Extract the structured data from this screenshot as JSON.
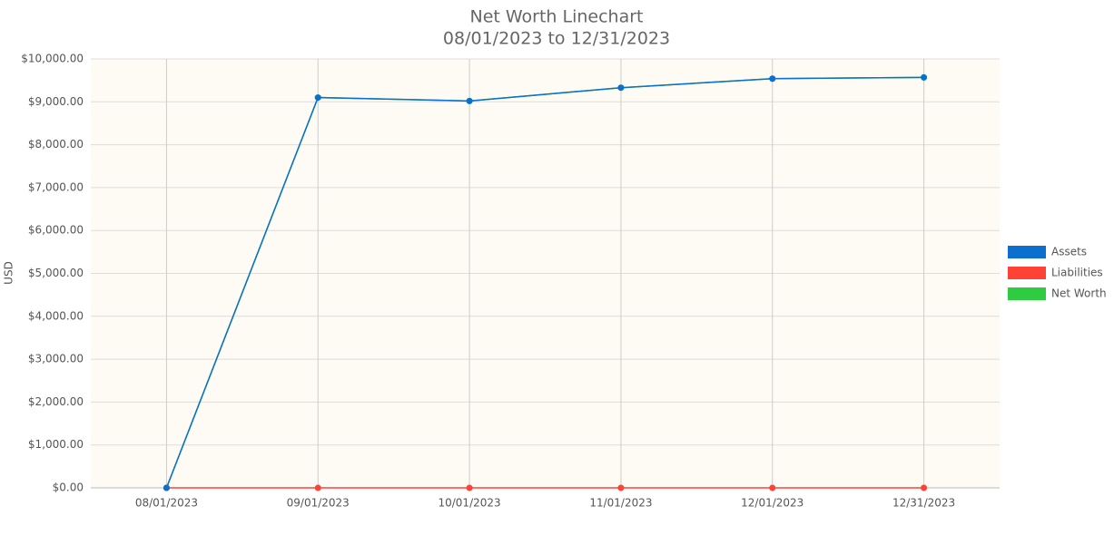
{
  "chart_data": {
    "type": "line",
    "title": "Net Worth Linechart",
    "subtitle": "08/01/2023 to 12/31/2023",
    "y_label": "USD",
    "categories": [
      "08/01/2023",
      "09/01/2023",
      "10/01/2023",
      "11/01/2023",
      "12/01/2023",
      "12/31/2023"
    ],
    "series": [
      {
        "name": "Assets",
        "color": "#0b6fcf",
        "values": [
          0,
          9100,
          9020,
          9330,
          9540,
          9570
        ]
      },
      {
        "name": "Liabilities",
        "color": "#ff4136",
        "values": [
          0,
          0,
          0,
          0,
          0,
          0
        ]
      },
      {
        "name": "Net Worth",
        "color": "#2ecc40",
        "values": [
          0,
          9100,
          9020,
          9330,
          9540,
          9570
        ]
      }
    ],
    "ylim": [
      0,
      10000
    ],
    "yticks": [
      {
        "value": 0,
        "label": "$0.00"
      },
      {
        "value": 1000,
        "label": "$1,000.00"
      },
      {
        "value": 2000,
        "label": "$2,000.00"
      },
      {
        "value": 3000,
        "label": "$3,000.00"
      },
      {
        "value": 4000,
        "label": "$4,000.00"
      },
      {
        "value": 5000,
        "label": "$5,000.00"
      },
      {
        "value": 6000,
        "label": "$6,000.00"
      },
      {
        "value": 7000,
        "label": "$7,000.00"
      },
      {
        "value": 8000,
        "label": "$8,000.00"
      },
      {
        "value": 9000,
        "label": "$9,000.00"
      },
      {
        "value": 10000,
        "label": "$10,000.00"
      }
    ],
    "grid": true,
    "legend": "right"
  }
}
